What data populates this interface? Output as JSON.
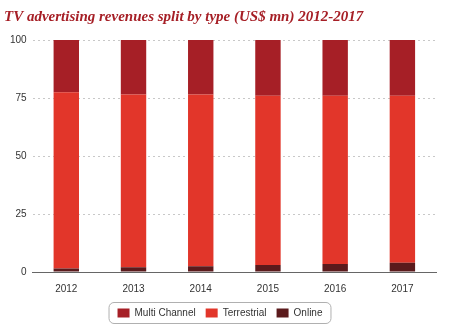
{
  "chart_data": {
    "type": "bar",
    "title": "TV advertising revenues split by type (US$ mn) 2012-2017",
    "categories": [
      "2012",
      "2013",
      "2014",
      "2015",
      "2016",
      "2017"
    ],
    "series": [
      {
        "name": "Multi Channel",
        "color": "#a61f26",
        "values": [
          22.5,
          23.5,
          23.5,
          24,
          24,
          24
        ]
      },
      {
        "name": "Terrestrial",
        "color": "#e2362a",
        "values": [
          76,
          74.5,
          74,
          73,
          72.5,
          72
        ]
      },
      {
        "name": "Online",
        "color": "#5b1a1c",
        "values": [
          1.5,
          2,
          2.5,
          3,
          3.5,
          4
        ]
      }
    ],
    "ylim": [
      0,
      100
    ],
    "yticks": [
      0,
      25,
      50,
      75,
      100
    ],
    "grid": true,
    "stacked": true,
    "legend": "bottom"
  }
}
